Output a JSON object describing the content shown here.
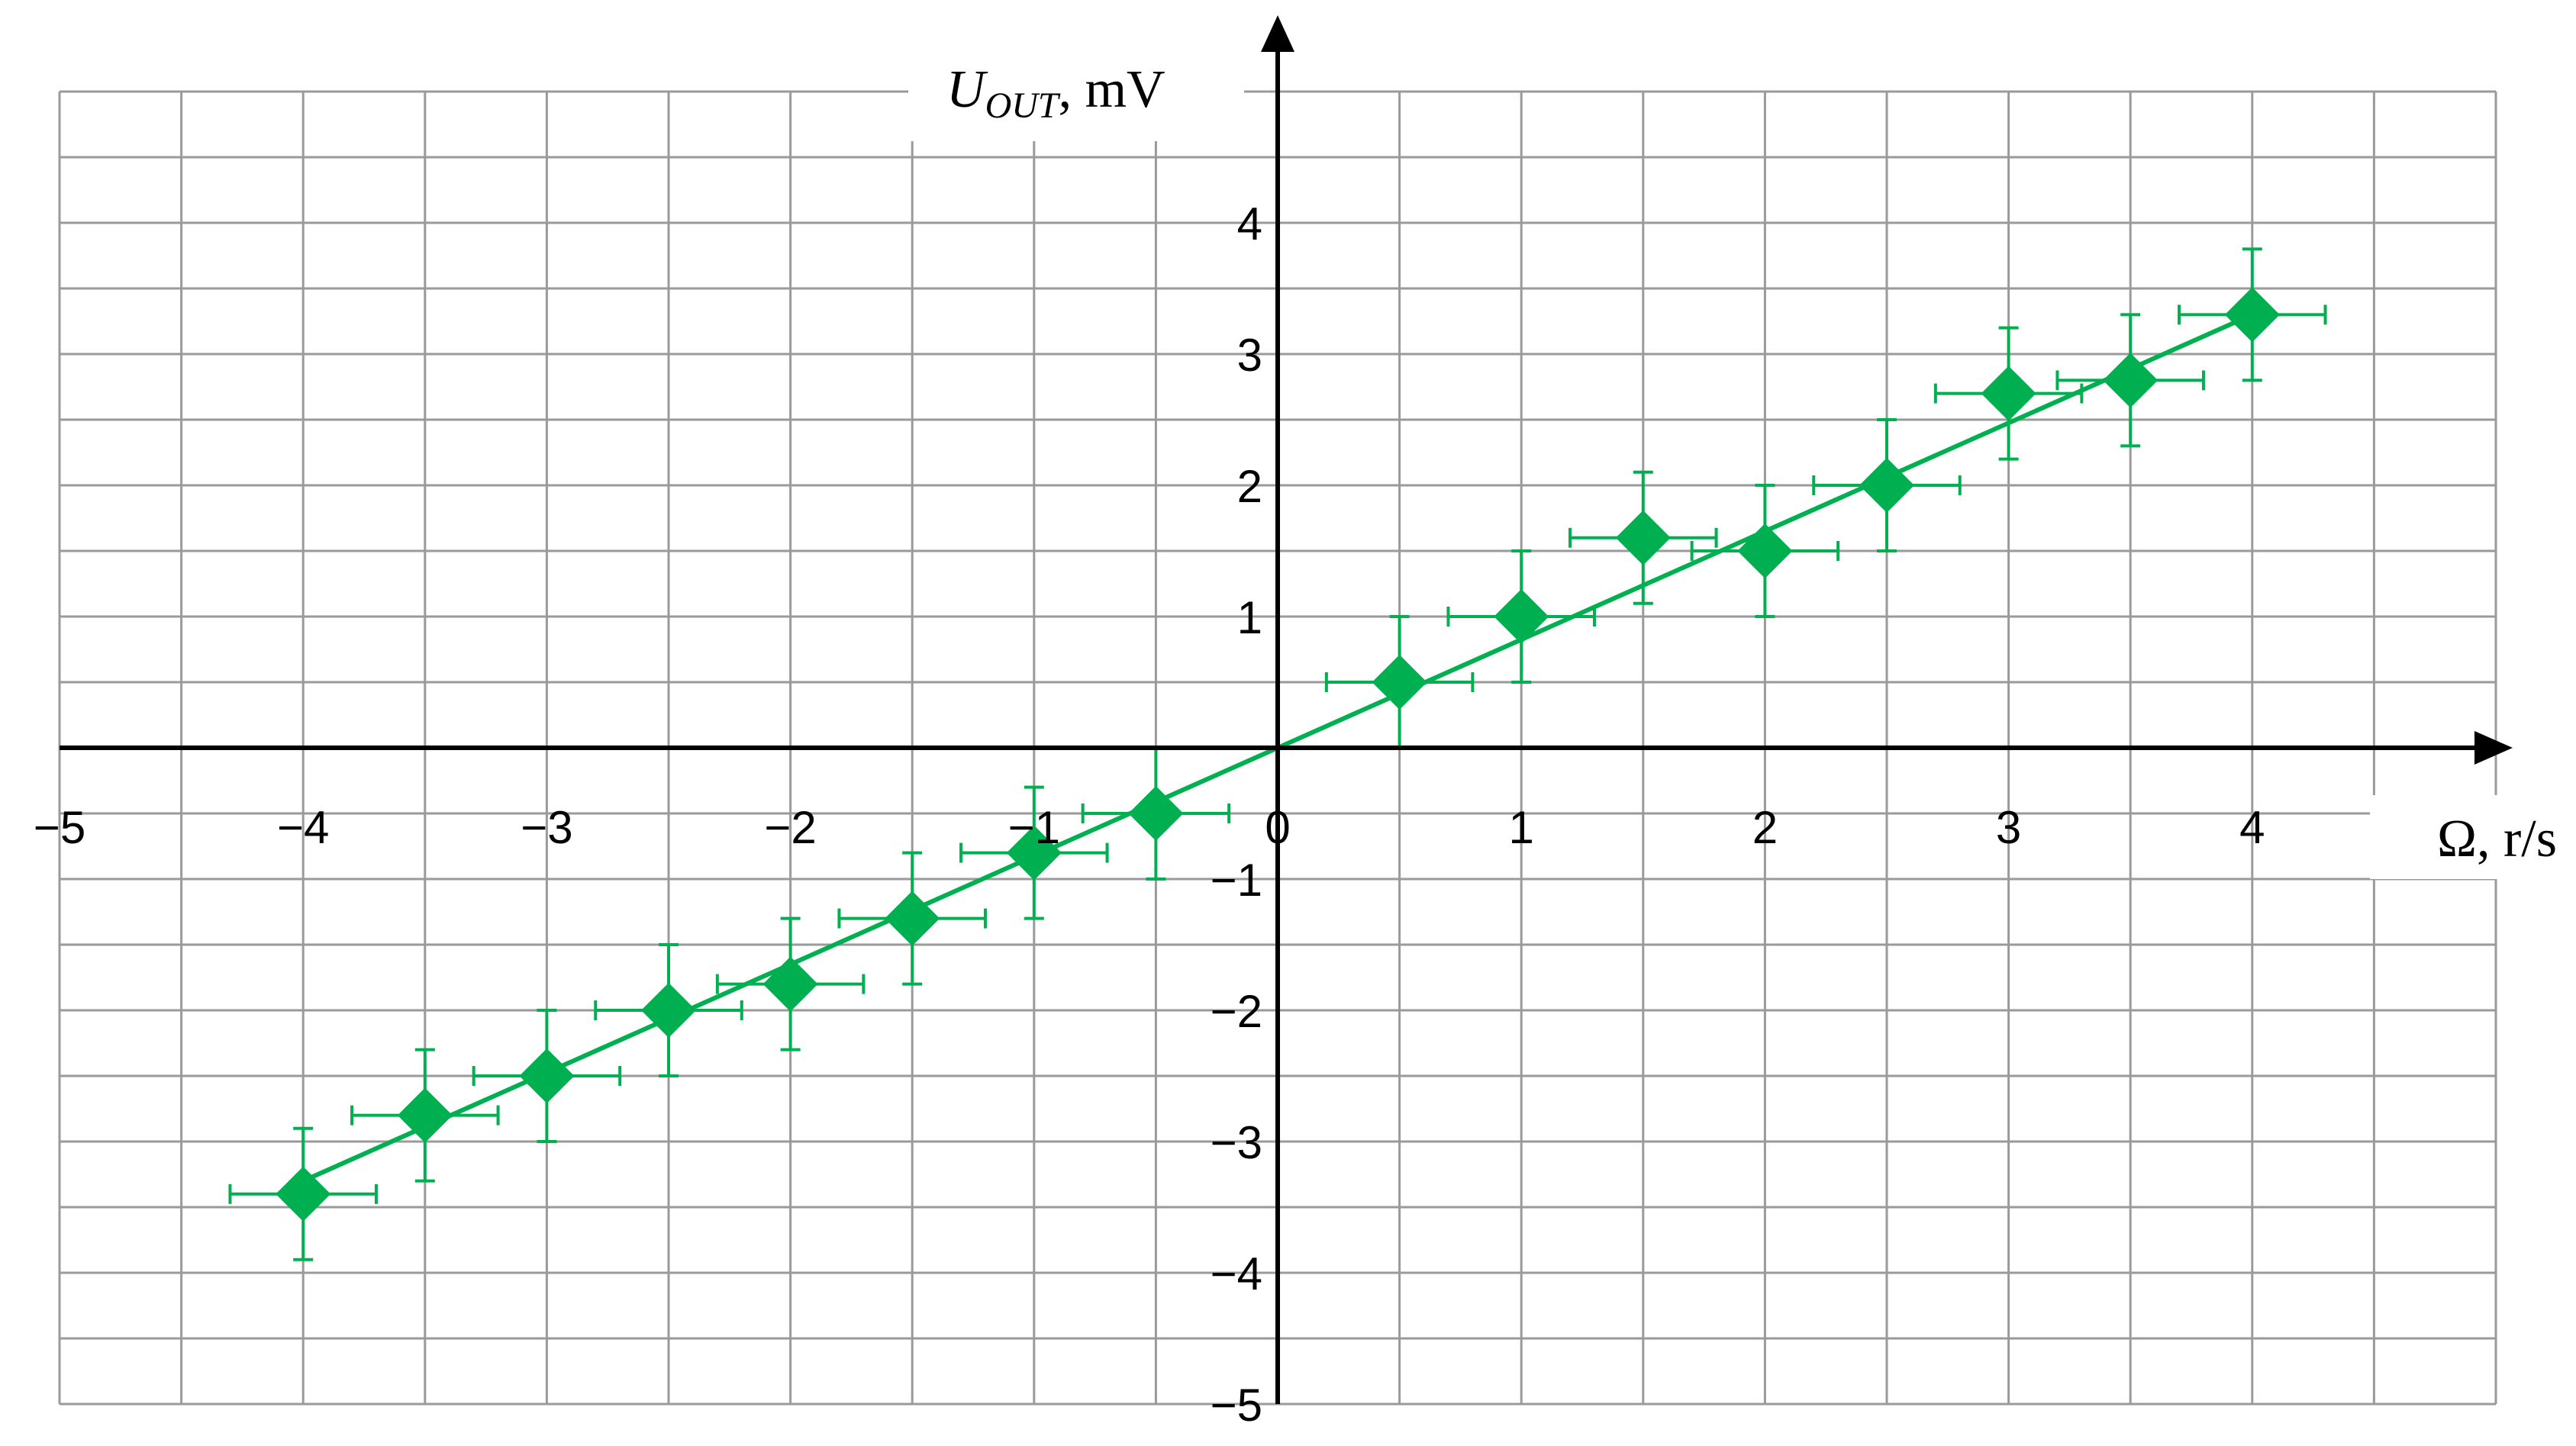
{
  "chart_data": {
    "type": "scatter",
    "title": "",
    "xlabel": {
      "symbol": "Ω",
      "unit": ", r/s"
    },
    "ylabel": {
      "symbol": "U",
      "subscript": "OUT",
      "unit": ", mV"
    },
    "xlim": [
      -5,
      5
    ],
    "ylim": [
      -5,
      5
    ],
    "x_ticks": [
      -5,
      -4,
      -3,
      -2,
      -1,
      0,
      1,
      2,
      3,
      4
    ],
    "x_tick_labels": [
      "−5",
      "−4",
      "−3",
      "−2",
      "−1",
      "0",
      "1",
      "2",
      "3",
      "4"
    ],
    "y_ticks": [
      -5,
      -4,
      -3,
      -2,
      -1,
      1,
      2,
      3,
      4
    ],
    "y_tick_labels": [
      "−5",
      "−4",
      "−3",
      "−2",
      "−1",
      "1",
      "2",
      "3",
      "4"
    ],
    "grid": true,
    "color": "#00b050",
    "series": [
      {
        "x": [
          -4,
          -3.5,
          -3,
          -2.5,
          -2,
          -1.5,
          -1,
          -0.5,
          0.5,
          1,
          1.5,
          2,
          2.5,
          3,
          3.5,
          4
        ],
        "y": [
          -3.4,
          -2.8,
          -2.5,
          -2.0,
          -1.8,
          -1.3,
          -0.8,
          -0.5,
          0.5,
          1.0,
          1.6,
          1.5,
          2.0,
          2.7,
          2.8,
          3.3
        ],
        "x_error": 0.3,
        "y_error": 0.5
      }
    ],
    "fit_line": {
      "x": [
        -4,
        4
      ],
      "y": [
        -3.3,
        3.3
      ]
    }
  }
}
